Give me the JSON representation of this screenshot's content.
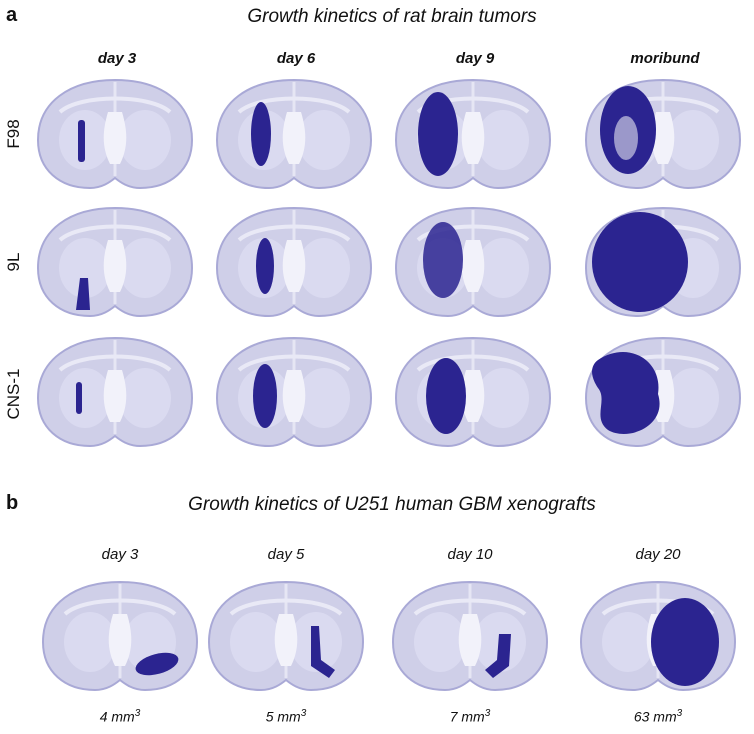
{
  "panel_a": {
    "letter": "a",
    "title": "Growth kinetics of rat brain tumors",
    "columns": [
      "day 3",
      "day 6",
      "day 9",
      "moribund"
    ],
    "rows": [
      {
        "label": "F98"
      },
      {
        "label": "9L"
      },
      {
        "label": "CNS-1"
      }
    ]
  },
  "panel_b": {
    "letter": "b",
    "title": "Growth kinetics of U251 human GBM xenografts",
    "columns": [
      "day 3",
      "day 5",
      "day 10",
      "day 20"
    ],
    "volumes": [
      {
        "value": "4 mm",
        "exp": "3"
      },
      {
        "value": "5 mm",
        "exp": "3"
      },
      {
        "value": "7 mm",
        "exp": "3"
      },
      {
        "value": "63 mm",
        "exp": "3"
      }
    ]
  },
  "colors": {
    "tissue": "#cfcfe8",
    "tissue_edge": "#a9a9d6",
    "tumor": "#2b2490"
  }
}
